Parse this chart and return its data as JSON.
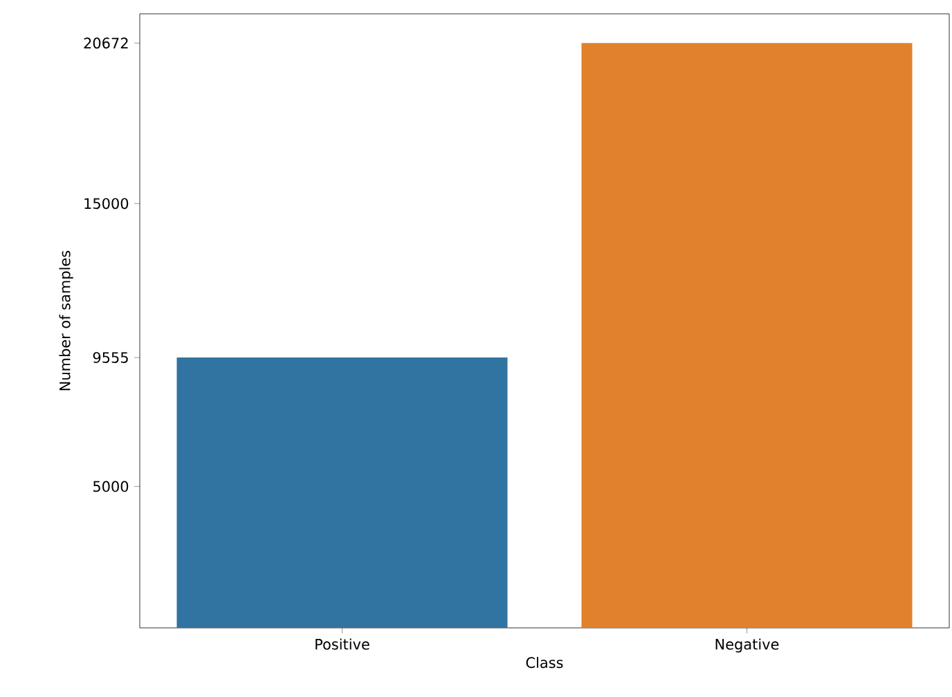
{
  "chart_data": {
    "type": "bar",
    "xlabel": "Class",
    "ylabel": "Number of samples",
    "categories": [
      "Positive",
      "Negative"
    ],
    "values": [
      9555,
      20672
    ],
    "colors": [
      "#3274a1",
      "#e1812c"
    ],
    "ylim": [
      0,
      21705.6
    ],
    "yticks": [
      5000,
      9555,
      15000,
      20672
    ]
  }
}
